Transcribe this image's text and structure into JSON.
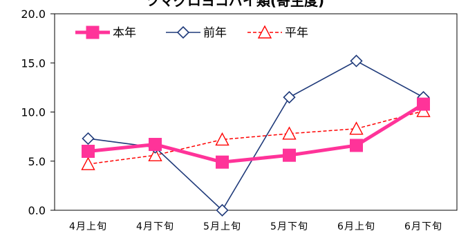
{
  "chart_data": {
    "type": "line",
    "title": "ツマグロヨコバイ類(寄生度)",
    "xlabel": "",
    "ylabel": "",
    "categories": [
      "4月上旬",
      "4月下旬",
      "5月上旬",
      "5月下旬",
      "6月上旬",
      "6月下旬"
    ],
    "ylim": [
      0,
      20
    ],
    "yticks": [
      "0.0",
      "5.0",
      "10.0",
      "15.0",
      "20.0"
    ],
    "grid": false,
    "legend_position": "top-left",
    "series": [
      {
        "name": "本年",
        "values": [
          6.0,
          6.7,
          4.9,
          5.6,
          6.6,
          10.8
        ],
        "color": "#ff3399",
        "style": "solid-thick",
        "marker": "square"
      },
      {
        "name": "前年",
        "values": [
          7.3,
          6.4,
          0.0,
          11.5,
          15.2,
          11.5
        ],
        "color": "#1f3a7a",
        "style": "solid",
        "marker": "diamond-open"
      },
      {
        "name": "平年",
        "values": [
          4.7,
          5.6,
          7.2,
          7.8,
          8.3,
          10.1
        ],
        "color": "#ff0000",
        "style": "dashed",
        "marker": "triangle-open"
      }
    ]
  }
}
